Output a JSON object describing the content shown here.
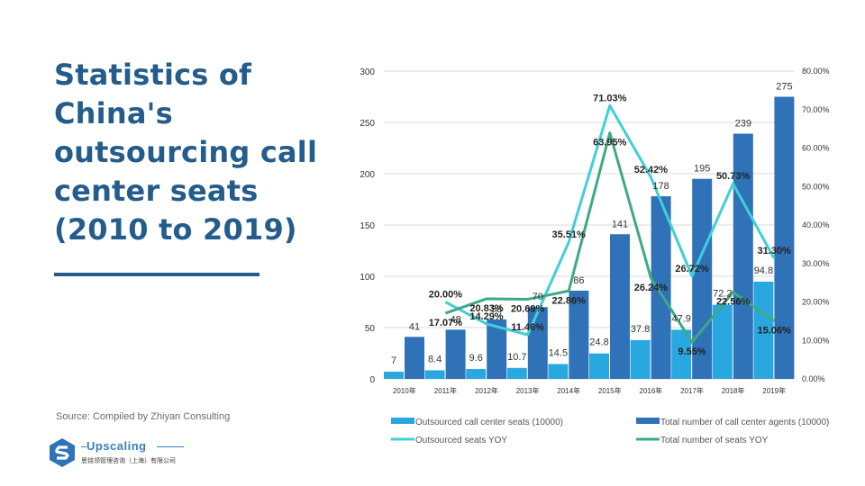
{
  "slide": {
    "title": "Statistics of China's outsourcing call center seats (2010 to 2019)",
    "source": "Source: Compiled by Zhiyan Consulting"
  },
  "logo": {
    "name": "Upscaling",
    "subtitle": "思铭领管理咨询（上海）有限公司",
    "icon": "upscaling-s-logo-icon"
  },
  "colors": {
    "title": "#245c8c",
    "outsourced_bar": "#29a8e0",
    "total_bar": "#2f72b8",
    "outsourced_yoy": "#3fcfd9",
    "total_yoy": "#3daa85"
  },
  "chart_data": {
    "type": "bar",
    "categories": [
      "2010年",
      "2011年",
      "2012年",
      "2013年",
      "2014年",
      "2015年",
      "2016年",
      "2017年",
      "2018年",
      "2019年"
    ],
    "ylim": [
      0,
      300
    ],
    "yticks": [
      "0",
      "50",
      "100",
      "150",
      "200",
      "250",
      "300"
    ],
    "y2lim": [
      0,
      80
    ],
    "y2ticks": [
      "0.00%",
      "10.00%",
      "20.00%",
      "30.00%",
      "40.00%",
      "50.00%",
      "60.00%",
      "70.00%",
      "80.00%"
    ],
    "grid": true,
    "legend_position": "bottom",
    "series": [
      {
        "name": "Outsourced call center seats (10000)",
        "type": "bar",
        "axis": "left",
        "values": [
          7,
          8.4,
          9.6,
          10.7,
          14.5,
          24.8,
          37.8,
          47.9,
          72.2,
          94.8
        ],
        "labels": [
          "7",
          "8.4",
          "9.6",
          "10.7",
          "14.5",
          "24.8",
          "37.8",
          "47.9",
          "72.2",
          "94.8"
        ]
      },
      {
        "name": "Total number of call center agents (10000)",
        "type": "bar",
        "axis": "left",
        "values": [
          41,
          48,
          58,
          70,
          86,
          141,
          178,
          195,
          239,
          275
        ],
        "labels": [
          "41",
          "48",
          "58",
          "70",
          "86",
          "141",
          "178",
          "195",
          "239",
          "275"
        ]
      },
      {
        "name": "Outsourced seats YOY",
        "type": "line",
        "axis": "right",
        "values": [
          null,
          20.0,
          14.29,
          11.46,
          35.51,
          71.03,
          52.42,
          26.72,
          50.73,
          31.3
        ],
        "labels": [
          "",
          "20.00%",
          "14.29%",
          "11.46%",
          "35.51%",
          "71.03%",
          "52.42%",
          "26.72%",
          "50.73%",
          "31.30%"
        ]
      },
      {
        "name": "Total number of seats YOY",
        "type": "line",
        "axis": "right",
        "values": [
          null,
          17.07,
          20.83,
          20.69,
          22.86,
          63.95,
          26.24,
          9.55,
          22.56,
          15.06
        ],
        "labels": [
          "",
          "17.07%",
          "20.83%",
          "20.69%",
          "22.86%",
          "63.95%",
          "26.24%",
          "9.55%",
          "22.56%",
          "15.06%"
        ]
      }
    ]
  }
}
